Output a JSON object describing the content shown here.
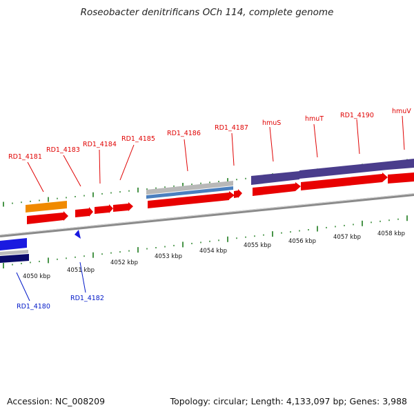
{
  "title": "Roseobacter denitrificans OCh 114, complete genome",
  "footer": {
    "accession": "Accession: NC_008209",
    "stats": "Topology: circular; Length: 4,133,097 bp; Genes: 3,988"
  },
  "colors": {
    "forward": "#e80000",
    "reverse_blue": "#1a1ae0",
    "reverse_navy": "#0a0a6a",
    "orange": "#f08a00",
    "purple": "#4a3d8c",
    "steel_blue": "#4a7fbf",
    "grey": "#b0b0b0",
    "tick_green": "#1a7a1a",
    "backbone": "#888888"
  },
  "gene_labels_upper": [
    {
      "id": "ul-4181",
      "text": "RD1_4181"
    },
    {
      "id": "ul-4183",
      "text": "RD1_4183"
    },
    {
      "id": "ul-4184",
      "text": "RD1_4184"
    },
    {
      "id": "ul-4185",
      "text": "RD1_4185"
    },
    {
      "id": "ul-4186",
      "text": "RD1_4186"
    },
    {
      "id": "ul-4187",
      "text": "RD1_4187"
    },
    {
      "id": "ul-hmus",
      "text": "hmuS"
    },
    {
      "id": "ul-hmut",
      "text": "hmuT"
    },
    {
      "id": "ul-4190",
      "text": "RD1_4190"
    },
    {
      "id": "ul-hmuv",
      "text": "hmuV"
    }
  ],
  "gene_labels_lower": [
    {
      "id": "ll-4180",
      "text": "RD1_4180"
    },
    {
      "id": "ll-4182",
      "text": "RD1_4182"
    }
  ],
  "kbp_labels": [
    "4050 kbp",
    "4051 kbp",
    "4052 kbp",
    "4053 kbp",
    "4054 kbp",
    "4055 kbp",
    "4056 kbp",
    "4057 kbp",
    "4058 kbp"
  ]
}
